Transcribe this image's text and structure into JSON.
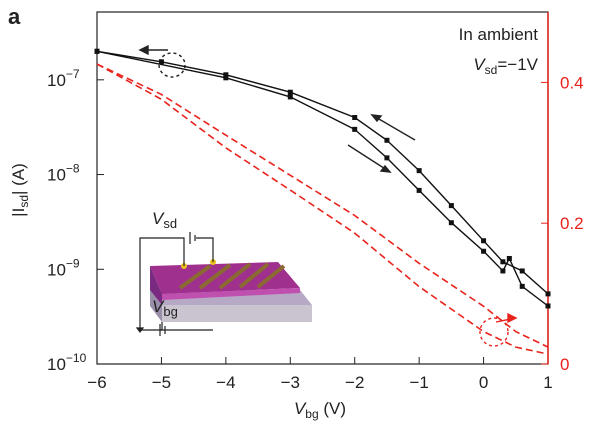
{
  "chart_data": {
    "type": "line",
    "panel_label": "a",
    "annotations": {
      "condition": "In ambient",
      "bias": [
        "V",
        "sd",
        "=−1V"
      ],
      "inset_vsd": [
        "V",
        "sd"
      ],
      "inset_vbg": [
        "V",
        "bg"
      ]
    },
    "xlabel": [
      "V",
      "bg",
      " (V)"
    ],
    "ylabel": [
      "|I",
      "sd",
      "| (A)"
    ],
    "xlim": [
      -6,
      1
    ],
    "xticks": [
      {
        "value": -6,
        "label": "−6"
      },
      {
        "value": -5,
        "label": "−5"
      },
      {
        "value": -4,
        "label": "−4"
      },
      {
        "value": -3,
        "label": "−3"
      },
      {
        "value": -2,
        "label": "−2"
      },
      {
        "value": -1,
        "label": "−1"
      },
      0,
      1
    ],
    "ylim": [
      1e-10,
      5.2e-07
    ],
    "yscale": "log",
    "yticks": [
      {
        "value": 1e-10,
        "label": "10",
        "exponent": "−10"
      },
      {
        "value": 1e-09,
        "label": "10",
        "exponent": "−9"
      },
      {
        "value": 1e-08,
        "label": "10",
        "exponent": "−8"
      },
      {
        "value": 1e-07,
        "label": "10",
        "exponent": "−7"
      }
    ],
    "y2lim": [
      0,
      0.5
    ],
    "y2ticks": [
      0,
      0.2,
      0.4
    ],
    "y2color": "#e8231c",
    "series": [
      {
        "color": "#111111",
        "style": "solid",
        "marker": "square",
        "x": [
          -6,
          -5,
          -4,
          -3,
          -2,
          -1.5,
          -1,
          -0.5,
          0,
          0.3,
          0.6,
          1
        ],
        "values": [
          2e-07,
          1.55e-07,
          1.13e-07,
          7.4e-08,
          4e-08,
          2.3e-08,
          1.1e-08,
          4.7e-09,
          2e-09,
          1.2e-09,
          9.6e-10,
          5.5e-10
        ]
      },
      {
        "color": "#111111",
        "style": "solid",
        "marker": "square",
        "x": [
          -6,
          -4,
          -3,
          -2,
          -1.5,
          -1,
          -0.5,
          0,
          0.3,
          0.4,
          0.6,
          1
        ],
        "values": [
          2e-07,
          1.05e-07,
          6.6e-08,
          3e-08,
          1.5e-08,
          6.8e-09,
          3.1e-09,
          1.55e-09,
          9.6e-10,
          1.3e-09,
          6.6e-10,
          4.1e-10
        ]
      },
      {
        "color": "#e8231c",
        "style": "dashed",
        "axis": "y2",
        "x": [
          -6,
          -5,
          -4,
          -3,
          -2,
          -1,
          0,
          0.5,
          1
        ],
        "values": [
          0.426,
          0.383,
          0.325,
          0.268,
          0.211,
          0.143,
          0.082,
          0.046,
          0.024
        ]
      },
      {
        "color": "#e8231c",
        "style": "dashed",
        "axis": "y2",
        "x": [
          -6,
          -5,
          -4,
          -3,
          -2,
          -1,
          0,
          0.5,
          1
        ],
        "values": [
          0.426,
          0.376,
          0.307,
          0.247,
          0.186,
          0.11,
          0.046,
          0.024,
          0.014
        ]
      }
    ]
  }
}
